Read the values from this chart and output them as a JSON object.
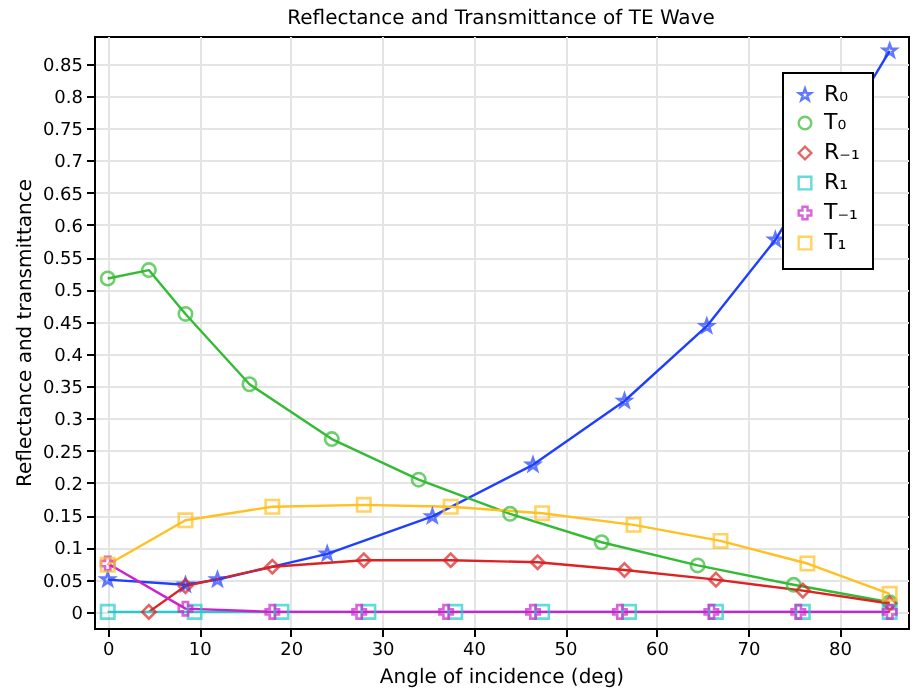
{
  "chart_data": {
    "type": "line",
    "title": "Reflectance and Transmittance of TE Wave",
    "xlabel": "Angle of incidence (deg)",
    "ylabel": "Reflectance and transmittance",
    "xlim": [
      -1.5,
      87.5
    ],
    "ylim": [
      -0.025,
      0.893
    ],
    "xticks": [
      0,
      10,
      20,
      30,
      40,
      50,
      60,
      70,
      80
    ],
    "yticks": [
      0,
      0.05,
      0.1,
      0.15,
      0.2,
      0.25,
      0.3,
      0.35,
      0.4,
      0.45,
      0.5,
      0.55,
      0.6,
      0.65,
      0.7,
      0.75,
      0.8,
      0.85
    ],
    "grid": true,
    "legend": "top right",
    "line_style": "solid",
    "series": [
      {
        "name": "R₀",
        "color": "#1f3fff",
        "marker": "star",
        "x": [
          0,
          8.5,
          12,
          24,
          35.5,
          46.5,
          56.5,
          65.5,
          73,
          85.5
        ],
        "values": [
          0.05,
          0.042,
          0.05,
          0.09,
          0.148,
          0.228,
          0.327,
          0.443,
          0.577,
          0.87
        ]
      },
      {
        "name": "T₀",
        "color": "#33bb33",
        "marker": "circle",
        "x": [
          0,
          4.5,
          8.5,
          15.5,
          24.5,
          34,
          44,
          54,
          64.5,
          75,
          85.5
        ],
        "values": [
          0.517,
          0.53,
          0.462,
          0.353,
          0.268,
          0.205,
          0.152,
          0.108,
          0.072,
          0.042,
          0.015
        ]
      },
      {
        "name": "R₋₁",
        "color": "#dd2222",
        "marker": "diamond",
        "x": [
          4.5,
          8.5,
          18,
          28,
          37.5,
          47,
          56.5,
          66.5,
          76,
          85.5
        ],
        "values": [
          0,
          0.04,
          0.07,
          0.08,
          0.08,
          0.077,
          0.065,
          0.05,
          0.033,
          0.013
        ]
      },
      {
        "name": "R₁",
        "color": "#22cccc",
        "marker": "square",
        "x": [
          0,
          9.5,
          19,
          28.5,
          38,
          47.5,
          57,
          66.5,
          76,
          85.5
        ],
        "values": [
          0,
          0,
          0,
          0,
          0,
          0,
          0,
          0,
          0,
          0
        ]
      },
      {
        "name": "T₋₁",
        "color": "#cc22cc",
        "marker": "cross",
        "x": [
          0,
          8.5,
          18,
          27.5,
          37,
          46.5,
          56,
          66,
          75.5,
          85.5
        ],
        "values": [
          0.075,
          0.005,
          0,
          0,
          0,
          0,
          0,
          0,
          0,
          0
        ]
      },
      {
        "name": "T₁",
        "color": "#ffc020",
        "marker": "square",
        "x": [
          0,
          8.5,
          18,
          28,
          37.5,
          47.5,
          57.5,
          67,
          76.5,
          85.5
        ],
        "values": [
          0.073,
          0.142,
          0.163,
          0.166,
          0.163,
          0.153,
          0.135,
          0.11,
          0.075,
          0.028
        ]
      }
    ]
  }
}
